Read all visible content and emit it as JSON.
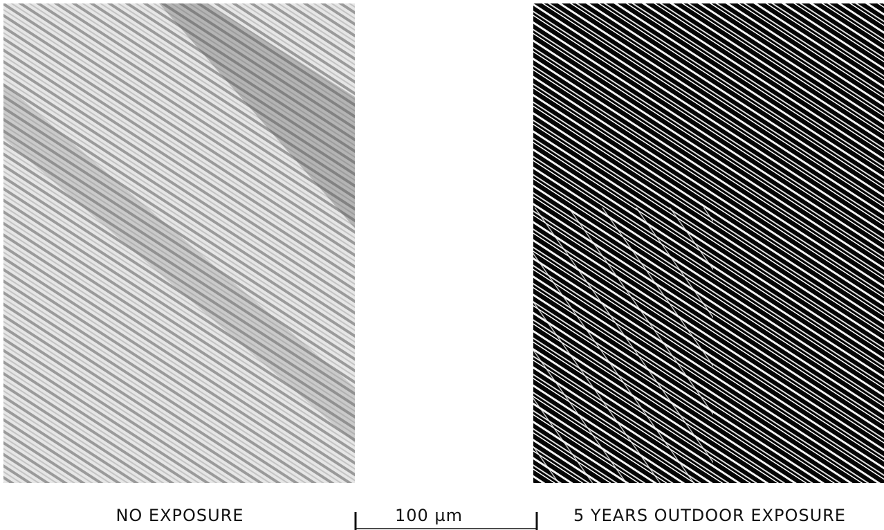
{
  "panels": [
    {
      "label": "NO EXPOSURE"
    },
    {
      "label": "5 YEARS OUTDOOR EXPOSURE"
    }
  ],
  "scale_bar": {
    "label": "100 µm"
  }
}
